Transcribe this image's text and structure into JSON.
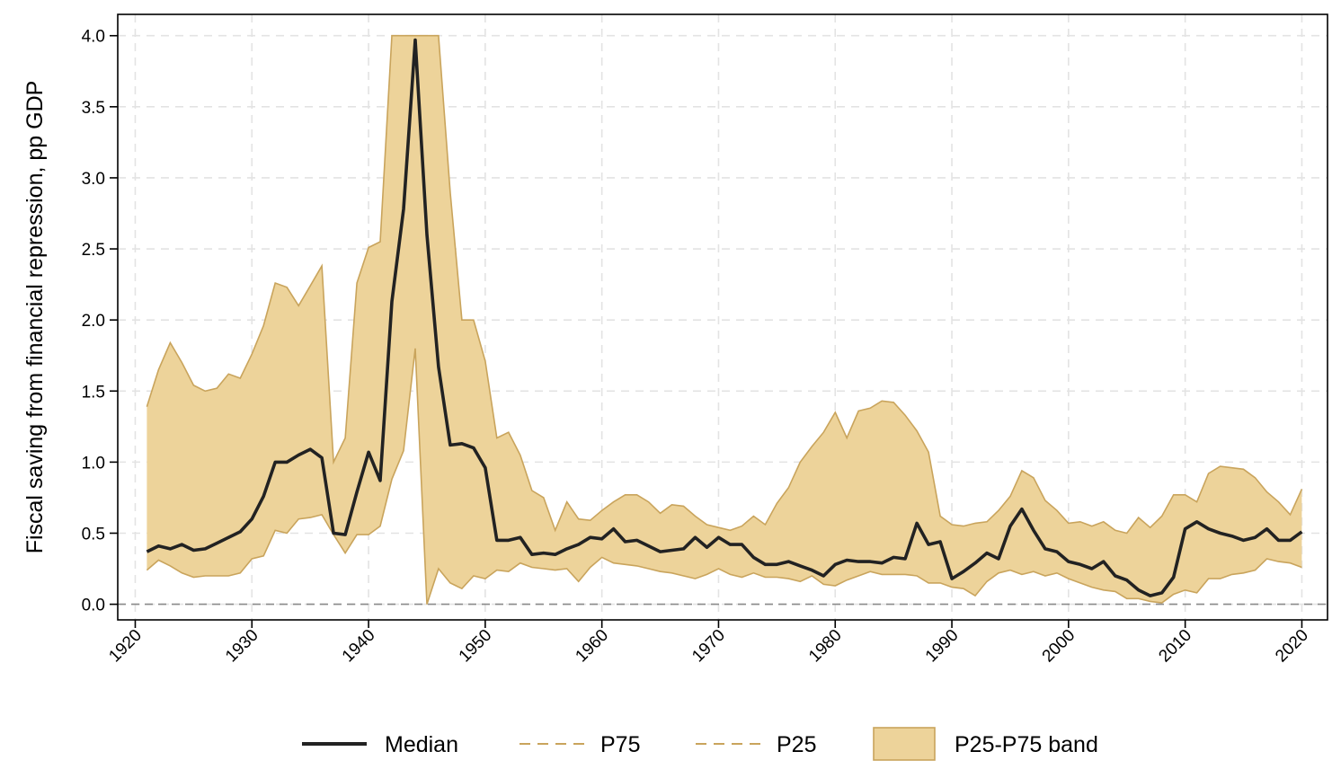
{
  "chart_data": {
    "type": "line",
    "title": "",
    "xlabel": "",
    "ylabel": "Fiscal saving from financial repression, pp GDP",
    "xlim": [
      1918.5,
      2022.2
    ],
    "ylim": [
      -0.11,
      4.15
    ],
    "x_ticks": [
      1920,
      1930,
      1940,
      1950,
      1960,
      1970,
      1980,
      1990,
      2000,
      2010,
      2020
    ],
    "x_tick_labels": [
      "1920",
      "1930",
      "1940",
      "1950",
      "1960",
      "1970",
      "1980",
      "1990",
      "2000",
      "2010",
      "2020"
    ],
    "y_ticks": [
      0,
      0.5,
      1,
      1.5,
      2,
      2.5,
      3,
      3.5,
      4
    ],
    "y_tick_labels": [
      "0.0",
      "0.5",
      "1.0",
      "1.5",
      "2.0",
      "2.5",
      "3.0",
      "3.5",
      "4.0"
    ],
    "grid": true,
    "reference_line_y": 0,
    "legend_position": "bottom",
    "colors": {
      "median": "#222222",
      "band_fill": "#EDD39A",
      "band_edge": "#C9A45C",
      "grid": "#E3E3E3",
      "zero_line": "#8A8A8A"
    },
    "x": [
      1921,
      1922,
      1923,
      1924,
      1925,
      1926,
      1927,
      1928,
      1929,
      1930,
      1931,
      1932,
      1933,
      1934,
      1935,
      1936,
      1937,
      1938,
      1939,
      1940,
      1941,
      1942,
      1943,
      1944,
      1945,
      1946,
      1947,
      1948,
      1949,
      1950,
      1951,
      1952,
      1953,
      1954,
      1955,
      1956,
      1957,
      1958,
      1959,
      1960,
      1961,
      1962,
      1963,
      1964,
      1965,
      1966,
      1967,
      1968,
      1969,
      1970,
      1971,
      1972,
      1973,
      1974,
      1975,
      1976,
      1977,
      1978,
      1979,
      1980,
      1981,
      1982,
      1983,
      1984,
      1985,
      1986,
      1987,
      1988,
      1989,
      1990,
      1991,
      1992,
      1993,
      1994,
      1995,
      1996,
      1997,
      1998,
      1999,
      2000,
      2001,
      2002,
      2003,
      2004,
      2005,
      2006,
      2007,
      2008,
      2009,
      2010,
      2011,
      2012,
      2013,
      2014,
      2015,
      2016,
      2017,
      2018,
      2019,
      2020
    ],
    "series": [
      {
        "name": "Median",
        "style": "solid",
        "values": [
          0.37,
          0.41,
          0.39,
          0.42,
          0.38,
          0.39,
          0.43,
          0.47,
          0.51,
          0.6,
          0.76,
          1.0,
          1.0,
          1.05,
          1.09,
          1.03,
          0.5,
          0.49,
          0.79,
          1.07,
          0.87,
          2.13,
          2.78,
          3.97,
          2.6,
          1.67,
          1.12,
          1.13,
          1.1,
          0.96,
          0.45,
          0.45,
          0.47,
          0.35,
          0.36,
          0.35,
          0.39,
          0.42,
          0.47,
          0.46,
          0.53,
          0.44,
          0.45,
          0.41,
          0.37,
          0.38,
          0.39,
          0.47,
          0.4,
          0.47,
          0.42,
          0.42,
          0.33,
          0.28,
          0.28,
          0.3,
          0.27,
          0.24,
          0.2,
          0.28,
          0.31,
          0.3,
          0.3,
          0.29,
          0.33,
          0.32,
          0.57,
          0.42,
          0.44,
          0.18,
          0.23,
          0.29,
          0.36,
          0.32,
          0.55,
          0.67,
          0.52,
          0.39,
          0.37,
          0.3,
          0.28,
          0.25,
          0.3,
          0.2,
          0.17,
          0.1,
          0.06,
          0.08,
          0.19,
          0.53,
          0.58,
          0.53,
          0.5,
          0.48,
          0.45,
          0.47,
          0.53,
          0.45,
          0.45,
          0.51
        ]
      },
      {
        "name": "P75",
        "style": "dashed",
        "values": [
          1.39,
          1.65,
          1.84,
          1.7,
          1.54,
          1.5,
          1.52,
          1.62,
          1.59,
          1.76,
          1.96,
          2.26,
          2.23,
          2.1,
          2.24,
          2.38,
          1.0,
          1.17,
          2.26,
          2.51,
          2.55,
          4.0,
          4.0,
          4.0,
          4.0,
          4.0,
          2.9,
          2.0,
          2.0,
          1.71,
          1.17,
          1.21,
          1.05,
          0.8,
          0.75,
          0.52,
          0.72,
          0.6,
          0.59,
          0.66,
          0.72,
          0.77,
          0.77,
          0.72,
          0.64,
          0.7,
          0.69,
          0.62,
          0.56,
          0.54,
          0.52,
          0.55,
          0.62,
          0.56,
          0.71,
          0.82,
          1.0,
          1.11,
          1.21,
          1.35,
          1.17,
          1.36,
          1.38,
          1.43,
          1.42,
          1.33,
          1.22,
          1.07,
          0.62,
          0.56,
          0.55,
          0.57,
          0.58,
          0.66,
          0.76,
          0.94,
          0.89,
          0.73,
          0.66,
          0.57,
          0.58,
          0.55,
          0.58,
          0.52,
          0.5,
          0.61,
          0.54,
          0.62,
          0.77,
          0.77,
          0.72,
          0.92,
          0.97,
          0.96,
          0.95,
          0.89,
          0.79,
          0.72,
          0.63,
          0.81
        ]
      },
      {
        "name": "P25",
        "style": "dashed",
        "values": [
          0.24,
          0.31,
          0.27,
          0.22,
          0.19,
          0.2,
          0.2,
          0.2,
          0.22,
          0.32,
          0.34,
          0.52,
          0.5,
          0.6,
          0.61,
          0.63,
          0.49,
          0.36,
          0.49,
          0.49,
          0.55,
          0.88,
          1.08,
          1.8,
          0.0,
          0.25,
          0.15,
          0.11,
          0.2,
          0.18,
          0.24,
          0.23,
          0.29,
          0.26,
          0.25,
          0.24,
          0.25,
          0.16,
          0.26,
          0.33,
          0.29,
          0.28,
          0.27,
          0.25,
          0.23,
          0.22,
          0.2,
          0.18,
          0.21,
          0.25,
          0.21,
          0.19,
          0.22,
          0.19,
          0.19,
          0.18,
          0.16,
          0.2,
          0.14,
          0.13,
          0.17,
          0.2,
          0.23,
          0.21,
          0.21,
          0.21,
          0.2,
          0.15,
          0.15,
          0.12,
          0.11,
          0.06,
          0.16,
          0.22,
          0.24,
          0.21,
          0.23,
          0.2,
          0.22,
          0.18,
          0.15,
          0.12,
          0.1,
          0.09,
          0.04,
          0.04,
          0.02,
          0.01,
          0.07,
          0.1,
          0.08,
          0.18,
          0.18,
          0.21,
          0.22,
          0.24,
          0.32,
          0.3,
          0.29,
          0.26
        ]
      }
    ],
    "legend": [
      "Median",
      "P75",
      "P25",
      "P25-P75 band"
    ]
  }
}
